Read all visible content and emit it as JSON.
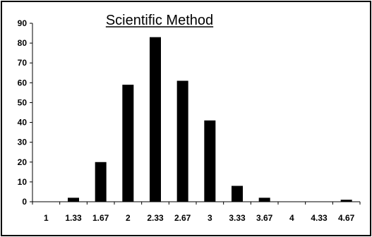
{
  "chart_data": {
    "type": "bar",
    "title": "Scientific Method",
    "xlabel": "",
    "ylabel": "",
    "categories": [
      "1",
      "1.33",
      "1.67",
      "2",
      "2.33",
      "2.67",
      "3",
      "3.33",
      "3.67",
      "4",
      "4.33",
      "4.67"
    ],
    "values": [
      0,
      2,
      20,
      59,
      83,
      61,
      41,
      8,
      2,
      0,
      0,
      1
    ],
    "ylim": [
      0,
      90
    ],
    "yticks": [
      "0",
      "10",
      "20",
      "30",
      "40",
      "50",
      "60",
      "70",
      "80",
      "90"
    ],
    "grid": false,
    "legend": "none",
    "bar_color": "#000000"
  }
}
